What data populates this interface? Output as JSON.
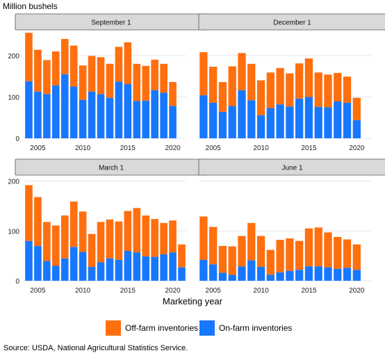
{
  "figure": {
    "ylabel": "Million bushels",
    "xlabel": "Marketing year",
    "source": "Source: USDA, National Agricultural Statistics Service."
  },
  "colors": {
    "off_farm": "#ff6f0e",
    "on_farm": "#1877ff",
    "strip_bg": "#d9d9d9",
    "grid": "#e6e6e6"
  },
  "legend": [
    {
      "name": "Off-farm inventories",
      "color": "#ff6f0e"
    },
    {
      "name": "On-farm inventories",
      "color": "#1877ff"
    }
  ],
  "chart_data": [
    {
      "type": "bar",
      "stacked": true,
      "title": "September 1",
      "x": [
        2004,
        2005,
        2006,
        2007,
        2008,
        2009,
        2010,
        2011,
        2012,
        2013,
        2014,
        2015,
        2016,
        2017,
        2018,
        2019,
        2020,
        2021
      ],
      "series": [
        {
          "name": "On-farm inventories",
          "values": [
            138,
            113,
            107,
            128,
            155,
            125,
            93,
            113,
            107,
            98,
            137,
            131,
            90,
            91,
            116,
            110,
            78,
            0
          ]
        },
        {
          "name": "Off-farm inventories",
          "values": [
            117,
            101,
            82,
            82,
            85,
            99,
            83,
            86,
            89,
            82,
            84,
            101,
            90,
            84,
            74,
            70,
            58,
            0
          ]
        }
      ],
      "ylim": [
        0,
        262
      ],
      "yticks": [
        0,
        100,
        200
      ],
      "xticks": [
        2005,
        2010,
        2015,
        2020
      ]
    },
    {
      "type": "bar",
      "stacked": true,
      "title": "December 1",
      "x": [
        2004,
        2005,
        2006,
        2007,
        2008,
        2009,
        2010,
        2011,
        2012,
        2013,
        2014,
        2015,
        2016,
        2017,
        2018,
        2019,
        2020,
        2021
      ],
      "series": [
        {
          "name": "On-farm inventories",
          "values": [
            104,
            86,
            64,
            78,
            116,
            92,
            56,
            73,
            82,
            77,
            96,
            100,
            76,
            75,
            89,
            86,
            44,
            0
          ]
        },
        {
          "name": "Off-farm inventories",
          "values": [
            104,
            87,
            72,
            96,
            90,
            88,
            84,
            86,
            88,
            80,
            85,
            93,
            83,
            79,
            69,
            63,
            54,
            0
          ]
        }
      ],
      "ylim": [
        0,
        262
      ],
      "yticks": [
        0,
        100,
        200
      ],
      "xticks": [
        2005,
        2010,
        2015,
        2020
      ]
    },
    {
      "type": "bar",
      "stacked": true,
      "title": "March 1",
      "x": [
        2004,
        2005,
        2006,
        2007,
        2008,
        2009,
        2010,
        2011,
        2012,
        2013,
        2014,
        2015,
        2016,
        2017,
        2018,
        2019,
        2020,
        2021
      ],
      "series": [
        {
          "name": "On-farm inventories",
          "values": [
            80,
            70,
            40,
            30,
            45,
            68,
            58,
            28,
            37,
            45,
            42,
            60,
            57,
            49,
            48,
            53,
            57,
            27
          ]
        },
        {
          "name": "Off-farm inventories",
          "values": [
            112,
            98,
            78,
            81,
            86,
            91,
            81,
            66,
            81,
            78,
            77,
            80,
            89,
            82,
            76,
            63,
            64,
            46
          ]
        }
      ],
      "ylim": [
        0,
        212
      ],
      "yticks": [
        0,
        100,
        200
      ],
      "xticks": [
        2005,
        2010,
        2015,
        2020
      ]
    },
    {
      "type": "bar",
      "stacked": true,
      "title": "June 1",
      "x": [
        2004,
        2005,
        2006,
        2007,
        2008,
        2009,
        2010,
        2011,
        2012,
        2013,
        2014,
        2015,
        2016,
        2017,
        2018,
        2019,
        2020,
        2021
      ],
      "series": [
        {
          "name": "On-farm inventories",
          "values": [
            42,
            33,
            16,
            12,
            29,
            41,
            28,
            12,
            17,
            20,
            22,
            29,
            29,
            27,
            24,
            26,
            22,
            0
          ]
        },
        {
          "name": "Off-farm inventories",
          "values": [
            87,
            75,
            54,
            57,
            61,
            75,
            62,
            50,
            65,
            65,
            58,
            76,
            78,
            70,
            64,
            57,
            51,
            0
          ]
        }
      ],
      "ylim": [
        0,
        212
      ],
      "yticks": [
        0,
        100,
        200
      ],
      "xticks": [
        2005,
        2010,
        2015,
        2020
      ]
    }
  ]
}
